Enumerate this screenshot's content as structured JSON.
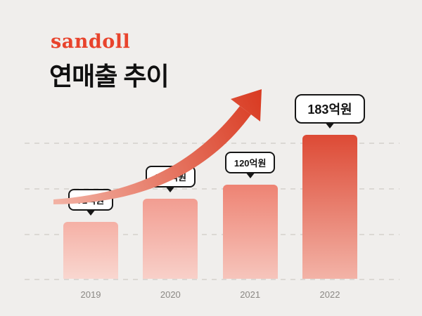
{
  "brand": {
    "logo_text": "sandoll",
    "logo_color": "#e8432c"
  },
  "header": {
    "title": "연매출 추이"
  },
  "chart_data": {
    "type": "bar",
    "title": "연매출 추이",
    "subtitle": "",
    "categories": [
      "2019",
      "2020",
      "2021",
      "2022"
    ],
    "values": [
      72,
      102,
      120,
      183
    ],
    "value_labels": [
      "72억원",
      "102억원",
      "120억원",
      "183억원"
    ],
    "unit": "억원",
    "ylabel": "",
    "xlabel": "",
    "ylim": [
      0,
      200
    ],
    "grid": "horizontal-dashed",
    "legend": "none",
    "highlight_index": 3,
    "bar_colors": [
      {
        "top": "#f5b0a5",
        "bottom": "#f9d7d0"
      },
      {
        "top": "#f29d91",
        "bottom": "#f8d0c9"
      },
      {
        "top": "#ee8373",
        "bottom": "#f6c5bc"
      },
      {
        "top": "#dd4a35",
        "bottom": "#f3b3a7"
      }
    ],
    "annotations": [
      "upward curved growth arrow"
    ]
  },
  "arrow": {
    "color_start": "#f2b1a3",
    "color_end": "#d93b22"
  },
  "axis": {
    "label_color": "#8b8884"
  }
}
